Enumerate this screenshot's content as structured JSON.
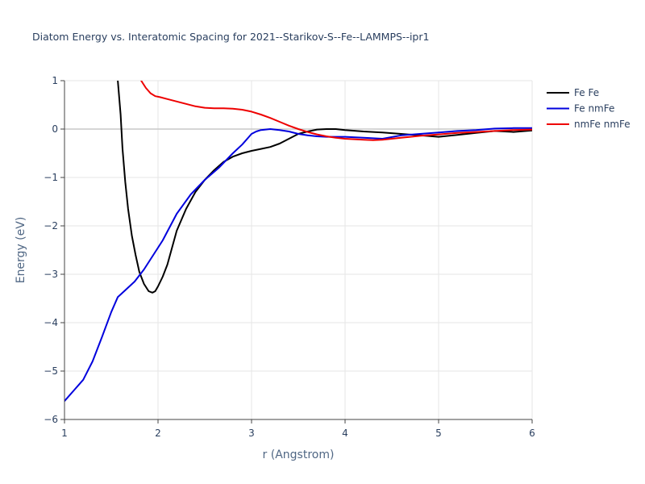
{
  "chart_data": {
    "type": "line",
    "title": "Diatom Energy vs. Interatomic Spacing for 2021--Starikov-S--Fe--LAMMPS--ipr1",
    "xlabel": "r (Angstrom)",
    "ylabel": "Energy (eV)",
    "xlim": [
      1,
      6
    ],
    "ylim": [
      -6,
      1
    ],
    "xticks": [
      1,
      2,
      3,
      4,
      5,
      6
    ],
    "yticks": [
      1,
      0,
      -1,
      -2,
      -3,
      -4,
      -5,
      -6
    ],
    "xtick_labels": [
      "1",
      "2",
      "3",
      "4",
      "5",
      "6"
    ],
    "ytick_labels": [
      "1",
      "0",
      "−1",
      "−2",
      "−3",
      "−4",
      "−5",
      "−6"
    ],
    "grid": true,
    "legend_position": "top-right",
    "series": [
      {
        "name": "Fe Fe",
        "color": "#000000",
        "x": [
          1.57,
          1.6,
          1.62,
          1.65,
          1.68,
          1.72,
          1.76,
          1.8,
          1.85,
          1.9,
          1.94,
          1.97,
          2.0,
          2.05,
          2.1,
          2.15,
          2.2,
          2.3,
          2.4,
          2.5,
          2.6,
          2.7,
          2.8,
          2.9,
          3.0,
          3.1,
          3.2,
          3.3,
          3.4,
          3.5,
          3.6,
          3.7,
          3.8,
          3.9,
          4.0,
          4.2,
          4.4,
          4.6,
          4.8,
          5.0,
          5.2,
          5.4,
          5.6,
          5.8,
          6.0
        ],
        "y": [
          1.0,
          0.3,
          -0.4,
          -1.1,
          -1.65,
          -2.2,
          -2.6,
          -2.95,
          -3.2,
          -3.35,
          -3.38,
          -3.35,
          -3.25,
          -3.05,
          -2.8,
          -2.45,
          -2.1,
          -1.65,
          -1.3,
          -1.05,
          -0.85,
          -0.68,
          -0.57,
          -0.5,
          -0.45,
          -0.41,
          -0.37,
          -0.3,
          -0.2,
          -0.1,
          -0.05,
          -0.01,
          0.0,
          0.0,
          -0.02,
          -0.05,
          -0.07,
          -0.1,
          -0.13,
          -0.16,
          -0.12,
          -0.08,
          -0.04,
          -0.06,
          -0.03
        ]
      },
      {
        "name": "Fe nmFe",
        "color": "#0000dd",
        "x": [
          1.0,
          1.1,
          1.2,
          1.3,
          1.4,
          1.5,
          1.57,
          1.65,
          1.75,
          1.85,
          1.95,
          2.05,
          2.2,
          2.35,
          2.5,
          2.65,
          2.8,
          2.9,
          3.0,
          3.05,
          3.1,
          3.2,
          3.3,
          3.4,
          3.5,
          3.6,
          3.7,
          3.8,
          4.0,
          4.2,
          4.4,
          4.6,
          4.8,
          5.0,
          5.2,
          5.4,
          5.6,
          5.8,
          6.0
        ],
        "y": [
          -5.62,
          -5.4,
          -5.18,
          -4.8,
          -4.3,
          -3.78,
          -3.47,
          -3.33,
          -3.15,
          -2.9,
          -2.6,
          -2.3,
          -1.75,
          -1.35,
          -1.05,
          -0.8,
          -0.5,
          -0.32,
          -0.1,
          -0.05,
          -0.02,
          0.0,
          -0.02,
          -0.05,
          -0.1,
          -0.13,
          -0.15,
          -0.16,
          -0.16,
          -0.18,
          -0.2,
          -0.13,
          -0.1,
          -0.07,
          -0.04,
          -0.02,
          0.01,
          0.02,
          0.02
        ]
      },
      {
        "name": "nmFe nmFe",
        "color": "#ee0000",
        "x": [
          1.82,
          1.87,
          1.92,
          1.97,
          2.02,
          2.1,
          2.2,
          2.3,
          2.4,
          2.5,
          2.6,
          2.7,
          2.8,
          2.9,
          3.0,
          3.1,
          3.2,
          3.3,
          3.4,
          3.5,
          3.6,
          3.7,
          3.8,
          3.9,
          4.0,
          4.1,
          4.2,
          4.3,
          4.4,
          4.5,
          4.6,
          4.8,
          5.0,
          5.2,
          5.4,
          5.6,
          5.8,
          6.0
        ],
        "y": [
          1.0,
          0.85,
          0.74,
          0.68,
          0.66,
          0.62,
          0.57,
          0.52,
          0.47,
          0.44,
          0.43,
          0.43,
          0.42,
          0.4,
          0.36,
          0.3,
          0.23,
          0.15,
          0.07,
          0.0,
          -0.06,
          -0.11,
          -0.15,
          -0.18,
          -0.2,
          -0.21,
          -0.22,
          -0.23,
          -0.22,
          -0.2,
          -0.18,
          -0.14,
          -0.11,
          -0.08,
          -0.06,
          -0.04,
          -0.02,
          -0.01
        ]
      }
    ]
  }
}
